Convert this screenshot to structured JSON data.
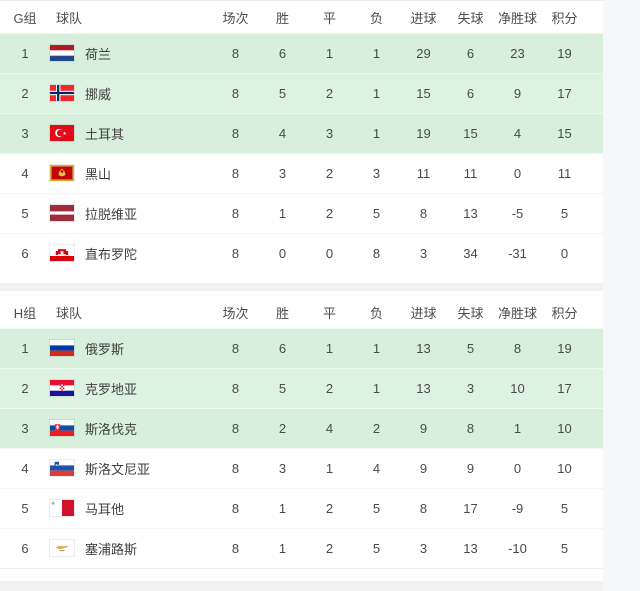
{
  "page": {
    "highlight_row_bg": "#d8efdd",
    "highlight_row_bg_alt": "#def2e2",
    "separator_band": "#f0f1f2",
    "right_strip": "#f6f7f8",
    "text_color": "#4a4a4a"
  },
  "stat_columns": [
    "场次",
    "胜",
    "平",
    "负",
    "进球",
    "失球",
    "净胜球",
    "积分"
  ],
  "groups": [
    {
      "label": "G组",
      "team_header": "球队",
      "rows": [
        {
          "rank": "1",
          "team": "荷兰",
          "flag": "netherlands",
          "highlighted": true,
          "stats": [
            "8",
            "6",
            "1",
            "1",
            "29",
            "6",
            "23",
            "19"
          ]
        },
        {
          "rank": "2",
          "team": "挪威",
          "flag": "norway",
          "highlighted": true,
          "stats": [
            "8",
            "5",
            "2",
            "1",
            "15",
            "6",
            "9",
            "17"
          ]
        },
        {
          "rank": "3",
          "team": "土耳其",
          "flag": "turkey",
          "highlighted": true,
          "stats": [
            "8",
            "4",
            "3",
            "1",
            "19",
            "15",
            "4",
            "15"
          ]
        },
        {
          "rank": "4",
          "team": "黑山",
          "flag": "montenegro",
          "highlighted": false,
          "stats": [
            "8",
            "3",
            "2",
            "3",
            "11",
            "11",
            "0",
            "11"
          ]
        },
        {
          "rank": "5",
          "team": "拉脱维亚",
          "flag": "latvia",
          "highlighted": false,
          "stats": [
            "8",
            "1",
            "2",
            "5",
            "8",
            "13",
            "-5",
            "5"
          ]
        },
        {
          "rank": "6",
          "team": "直布罗陀",
          "flag": "gibraltar",
          "highlighted": false,
          "stats": [
            "8",
            "0",
            "0",
            "8",
            "3",
            "34",
            "-31",
            "0"
          ]
        }
      ]
    },
    {
      "label": "H组",
      "team_header": "球队",
      "rows": [
        {
          "rank": "1",
          "team": "俄罗斯",
          "flag": "russia",
          "highlighted": true,
          "stats": [
            "8",
            "6",
            "1",
            "1",
            "13",
            "5",
            "8",
            "19"
          ]
        },
        {
          "rank": "2",
          "team": "克罗地亚",
          "flag": "croatia",
          "highlighted": true,
          "stats": [
            "8",
            "5",
            "2",
            "1",
            "13",
            "3",
            "10",
            "17"
          ]
        },
        {
          "rank": "3",
          "team": "斯洛伐克",
          "flag": "slovakia",
          "highlighted": true,
          "stats": [
            "8",
            "2",
            "4",
            "2",
            "9",
            "8",
            "1",
            "10"
          ]
        },
        {
          "rank": "4",
          "team": "斯洛文尼亚",
          "flag": "slovenia",
          "highlighted": false,
          "stats": [
            "8",
            "3",
            "1",
            "4",
            "9",
            "9",
            "0",
            "10"
          ]
        },
        {
          "rank": "5",
          "team": "马耳他",
          "flag": "malta",
          "highlighted": false,
          "stats": [
            "8",
            "1",
            "2",
            "5",
            "8",
            "17",
            "-9",
            "5"
          ]
        },
        {
          "rank": "6",
          "team": "塞浦路斯",
          "flag": "cyprus",
          "highlighted": false,
          "stats": [
            "8",
            "1",
            "2",
            "5",
            "3",
            "13",
            "-10",
            "5"
          ]
        }
      ]
    }
  ]
}
